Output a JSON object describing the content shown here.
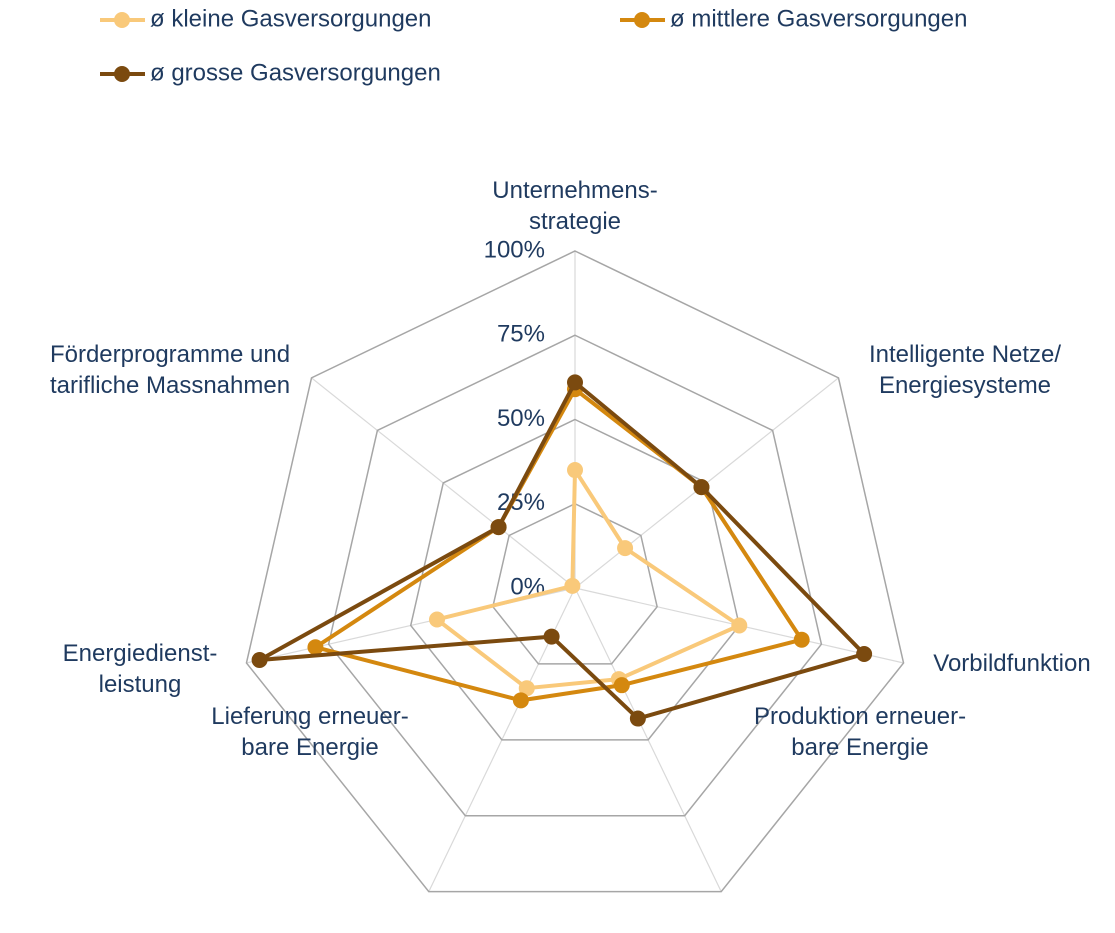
{
  "chart_data": {
    "type": "radar",
    "categories": [
      "Unternehmens-\nstrategie",
      "Intelligente Netze/\nEnergiesysteme",
      "Vorbildfunktion",
      "Produktion erneuer-\nbare Energie",
      "Lieferung erneuer-\nbare Energie",
      "Energiedienst-\nleistung",
      "Förderprogramme und\ntarifliche Massnahmen"
    ],
    "series": [
      {
        "name": "ø kleine Gasversorgungen",
        "color": "#f9c97a",
        "values": [
          35,
          19,
          50,
          30,
          33,
          42,
          1
        ]
      },
      {
        "name": "ø mittlere Gasversorgungen",
        "color": "#d4880f",
        "values": [
          59,
          48,
          69,
          32,
          37,
          79,
          29
        ]
      },
      {
        "name": "ø grosse Gasversorgungen",
        "color": "#7b4a0f",
        "values": [
          61,
          48,
          88,
          43,
          16,
          96,
          29
        ]
      }
    ],
    "ylim": [
      0,
      100
    ],
    "yticks": [
      {
        "value": 0,
        "label": "0%"
      },
      {
        "value": 25,
        "label": "25%"
      },
      {
        "value": 50,
        "label": "50%"
      },
      {
        "value": 75,
        "label": "75%"
      },
      {
        "value": 100,
        "label": "100%"
      }
    ],
    "grid": true
  }
}
